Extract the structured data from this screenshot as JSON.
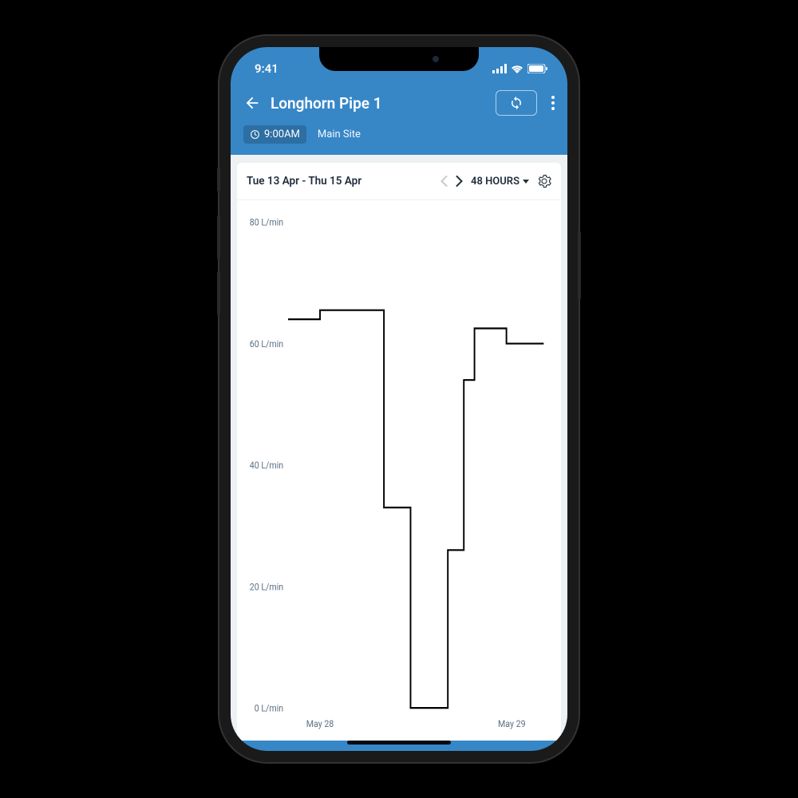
{
  "status": {
    "time": "9:41"
  },
  "header": {
    "title": "Longhorn Pipe 1",
    "time_chip": "9:00AM",
    "site": "Main Site"
  },
  "controls": {
    "date_range": "Tue 13 Apr - Thu 15 Apr",
    "range_label": "48 HOURS"
  },
  "chart": {
    "type": "step-line",
    "unit": "L/min",
    "y_axis": {
      "min": 0,
      "max": 80,
      "tick_step": 20,
      "ticks": [
        0,
        20,
        40,
        60,
        80
      ],
      "tick_labels": [
        "0 L/min",
        "20 L/min",
        "40 L/min",
        "60 L/min",
        "80 L/min"
      ],
      "label_color": "#5b7085",
      "label_fontsize": 11
    },
    "x_axis": {
      "min": 0,
      "max": 48,
      "tick_positions": [
        6,
        42
      ],
      "tick_labels": [
        "May 28",
        "May 29"
      ],
      "label_color": "#5b7085",
      "label_fontsize": 11
    },
    "line_color": "#000000",
    "line_width": 2,
    "grid_color": "#e3e7eb",
    "background_color": "#ffffff",
    "data": [
      {
        "x": 0,
        "y": 64
      },
      {
        "x": 6,
        "y": 64
      },
      {
        "x": 6,
        "y": 65.5
      },
      {
        "x": 18,
        "y": 65.5
      },
      {
        "x": 18,
        "y": 33
      },
      {
        "x": 23,
        "y": 33
      },
      {
        "x": 23,
        "y": 0
      },
      {
        "x": 30,
        "y": 0
      },
      {
        "x": 30,
        "y": 26
      },
      {
        "x": 33,
        "y": 26
      },
      {
        "x": 33,
        "y": 54
      },
      {
        "x": 35,
        "y": 54
      },
      {
        "x": 35,
        "y": 62.5
      },
      {
        "x": 41,
        "y": 62.5
      },
      {
        "x": 41,
        "y": 60
      },
      {
        "x": 48,
        "y": 60
      }
    ]
  },
  "colors": {
    "header_bg": "#3787c7",
    "page_bg": "#000000",
    "content_bg": "#eef1f3",
    "card_bg": "#ffffff"
  }
}
